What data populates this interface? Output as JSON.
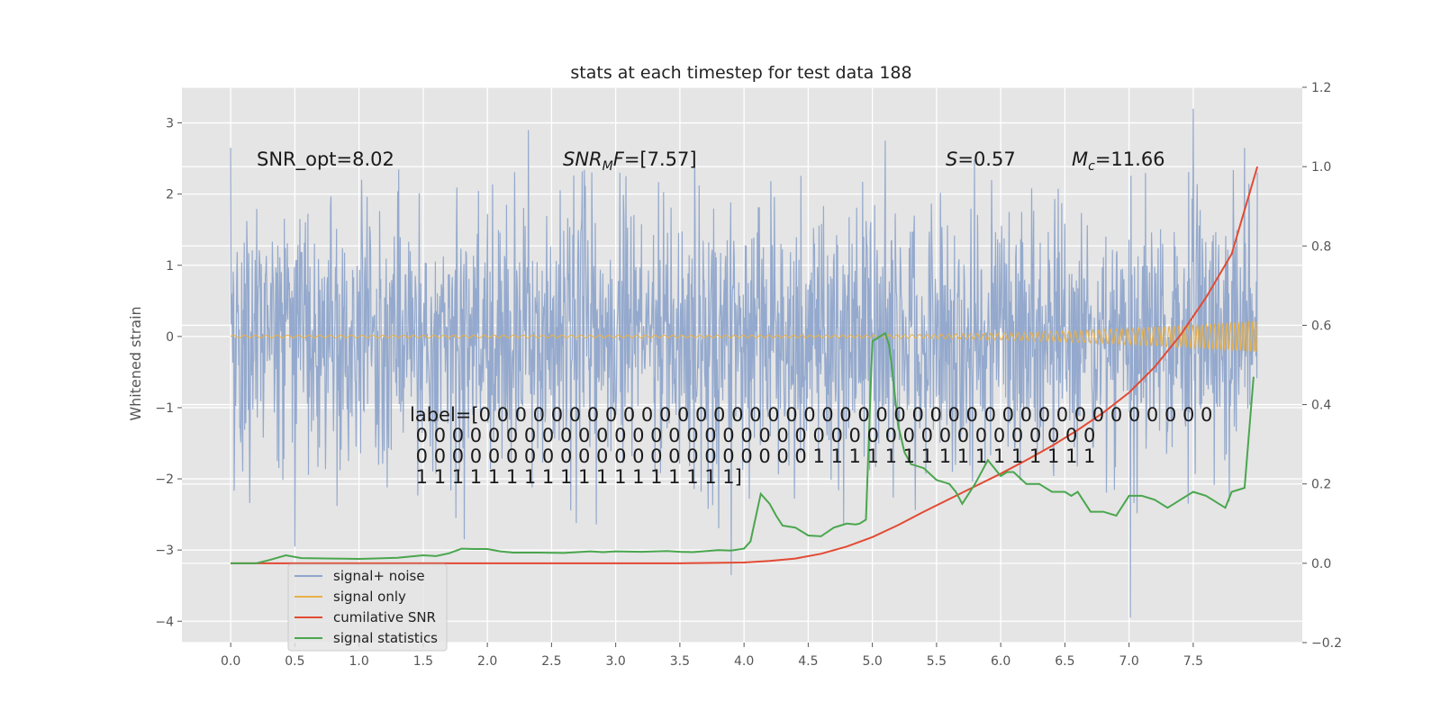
{
  "chart_data": {
    "type": "line",
    "title": "stats at each timestep for test data 188",
    "xlabel": "",
    "ylabel": "Whitened strain",
    "y2label": "",
    "xlim": [
      -0.38,
      8.35
    ],
    "ylim": [
      -4.3,
      3.5
    ],
    "y2lim": [
      -0.2,
      1.2
    ],
    "grid": true,
    "legend_position": "lower-left",
    "x_ticks": [
      "0.0",
      "0.5",
      "1.0",
      "1.5",
      "2.0",
      "2.5",
      "3.0",
      "3.5",
      "4.0",
      "4.5",
      "5.0",
      "5.5",
      "6.0",
      "6.5",
      "7.0",
      "7.5"
    ],
    "y_ticks": [
      "−4",
      "−3",
      "−2",
      "−1",
      "0",
      "1",
      "2",
      "3"
    ],
    "y2_ticks": [
      "−0.2",
      "0.0",
      "0.2",
      "0.4",
      "0.6",
      "0.8",
      "1.0",
      "1.2"
    ],
    "annotations": {
      "snr_opt": "SNR_opt=8.02",
      "snr_mf_var": "SNR",
      "snr_mf_sub": "M",
      "snr_mf_var2": "F",
      "snr_mf_val": "=[7.57]",
      "s_var": "S",
      "s_val": "=0.57",
      "mc_var": "M",
      "mc_sub": "c",
      "mc_val": "=11.66",
      "label_lines": [
        "label=[0 0 0 0 0 0 0 0 0 0 0 0 0 0 0 0 0 0 0 0 0 0 0 0 0 0 0 0 0 0 0 0 0 0 0 0 0 0 0 0 0",
        " 0 0 0 0 0 0 0 0 0 0 0 0 0 0 0 0 0 0 0 0 0 0 0 0 0 0 0 0 0 0 0 0 0 0 0 0 0 0",
        " 0 0 0 0 0 0 0 0 0 0 0 0 0 0 0 0 0 0 0 0 0 0 1 1 1 1 1 1 1 1 1 1 1 1 1 1 1 1",
        " 1 1 1 1 1 1 1 1 1 1 1 1 1 1 1 1 1 1]"
      ]
    },
    "legend": [
      {
        "label": "signal+ noise",
        "color": "#8fa5cb"
      },
      {
        "label": "signal only",
        "color": "#e8b048"
      },
      {
        "label": "cumilative SNR",
        "color": "#e24a33"
      },
      {
        "label": "signal statistics",
        "color": "#4aa64e"
      }
    ],
    "colors": {
      "background": "#e5e5e5",
      "grid": "#ffffff",
      "noise": "#8fa5cb",
      "signal": "#e8b048",
      "cum_snr": "#e24a33",
      "stats": "#4aa64e"
    },
    "series": [
      {
        "axis": "left",
        "note": "signal+ noise: dense whitened strain trace, ~2048 samples, roughly within [-2, 2] with occasional spikes to about +3.2 and -4.0",
        "spikes": [
          [
            0.0,
            2.65
          ],
          [
            0.5,
            -2.95
          ],
          [
            1.82,
            -2.85
          ],
          [
            2.32,
            2.9
          ],
          [
            3.9,
            -3.35
          ],
          [
            5.1,
            2.75
          ],
          [
            7.01,
            -3.95
          ],
          [
            7.5,
            3.2
          ],
          [
            7.9,
            2.65
          ]
        ]
      },
      {
        "axis": "left",
        "note": "signal only: chirp, amplitude ~0.02 until ~5.0, growing to ~0.22 at 8.0"
      },
      {
        "axis": "right",
        "x": [
          0.0,
          0.5,
          1.0,
          1.5,
          2.0,
          2.5,
          3.0,
          3.5,
          4.0,
          4.2,
          4.4,
          4.6,
          4.8,
          5.0,
          5.2,
          5.4,
          5.6,
          5.8,
          6.0,
          6.2,
          6.4,
          6.6,
          6.8,
          7.0,
          7.2,
          7.4,
          7.6,
          7.8,
          8.0
        ],
        "y": [
          0.0,
          0.0,
          0.0,
          0.0,
          0.0,
          0.0,
          0.0,
          0.0,
          0.002,
          0.006,
          0.012,
          0.024,
          0.042,
          0.066,
          0.096,
          0.13,
          0.162,
          0.194,
          0.226,
          0.26,
          0.296,
          0.336,
          0.38,
          0.43,
          0.495,
          0.575,
          0.67,
          0.78,
          1.0
        ]
      },
      {
        "axis": "right",
        "x": [
          0.0,
          0.2,
          0.3,
          0.43,
          0.55,
          0.8,
          1.0,
          1.1,
          1.3,
          1.5,
          1.6,
          1.7,
          1.8,
          1.9,
          2.0,
          2.1,
          2.2,
          2.4,
          2.6,
          2.7,
          2.8,
          2.9,
          3.0,
          3.2,
          3.4,
          3.5,
          3.6,
          3.8,
          3.9,
          4.0,
          4.05,
          4.13,
          4.2,
          4.25,
          4.3,
          4.4,
          4.5,
          4.6,
          4.7,
          4.75,
          4.8,
          4.87,
          4.9,
          4.95,
          5.0,
          5.05,
          5.1,
          5.13,
          5.15,
          5.2,
          5.25,
          5.3,
          5.4,
          5.5,
          5.6,
          5.65,
          5.7,
          5.8,
          5.9,
          6.0,
          6.05,
          6.1,
          6.2,
          6.3,
          6.4,
          6.5,
          6.55,
          6.6,
          6.7,
          6.8,
          6.9,
          7.0,
          7.05,
          7.1,
          7.2,
          7.3,
          7.35,
          7.4,
          7.5,
          7.6,
          7.65,
          7.7,
          7.75,
          7.8,
          7.9,
          7.97
        ],
        "y": [
          0.0,
          0.0,
          0.008,
          0.02,
          0.013,
          0.012,
          0.011,
          0.012,
          0.014,
          0.02,
          0.018,
          0.025,
          0.037,
          0.036,
          0.036,
          0.03,
          0.027,
          0.027,
          0.026,
          0.028,
          0.03,
          0.028,
          0.03,
          0.029,
          0.031,
          0.029,
          0.028,
          0.033,
          0.032,
          0.037,
          0.055,
          0.175,
          0.15,
          0.12,
          0.095,
          0.09,
          0.07,
          0.068,
          0.09,
          0.095,
          0.1,
          0.098,
          0.1,
          0.11,
          0.56,
          0.57,
          0.58,
          0.55,
          0.5,
          0.35,
          0.28,
          0.25,
          0.24,
          0.21,
          0.2,
          0.18,
          0.15,
          0.2,
          0.26,
          0.22,
          0.23,
          0.23,
          0.2,
          0.2,
          0.18,
          0.18,
          0.17,
          0.18,
          0.13,
          0.13,
          0.12,
          0.17,
          0.17,
          0.17,
          0.16,
          0.14,
          0.15,
          0.16,
          0.18,
          0.17,
          0.16,
          0.15,
          0.14,
          0.18,
          0.19,
          0.47
        ]
      }
    ]
  }
}
